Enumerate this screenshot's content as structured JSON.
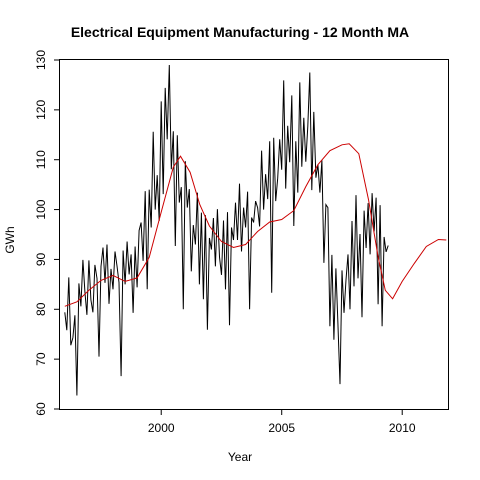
{
  "chart_data": {
    "type": "line",
    "title": "Electrical Equipment Manufacturing - 12 Month MA",
    "xlabel": "Year",
    "ylabel": "GWh",
    "xlim": [
      1995.8,
      2011.9
    ],
    "ylim": [
      60,
      130
    ],
    "x_ticks": [
      2000,
      2005,
      2010
    ],
    "y_ticks": [
      60,
      70,
      80,
      90,
      100,
      110,
      120,
      130
    ],
    "x_tick_labels": [
      "2000",
      "2005",
      "2010"
    ],
    "y_tick_labels": [
      "60",
      "70",
      "80",
      "90",
      "100",
      "110",
      "120",
      "130"
    ],
    "grid": false,
    "legend": "none",
    "series": [
      {
        "role": "monthly",
        "color": "#000000",
        "x_start": 1996.0,
        "x_step": 0.0833333,
        "values": [
          79.4,
          75.8,
          86.4,
          72.8,
          74.3,
          78.8,
          62.7,
          85.2,
          80.6,
          89.9,
          83.5,
          78.9,
          89.8,
          81.9,
          79.4,
          88.9,
          86.2,
          70.5,
          88.6,
          92.4,
          85.3,
          93.0,
          81.1,
          88.1,
          84.0,
          91.6,
          88.7,
          85.4,
          66.6,
          91.8,
          85.0,
          93.6,
          87.0,
          91.0,
          79.3,
          92.6,
          84.4,
          95.8,
          97.4,
          89.7,
          103.7,
          84.0,
          104.0,
          96.4,
          115.6,
          100.0,
          106.9,
          97.7,
          121.7,
          103.1,
          124.4,
          114.1,
          129.0,
          108.1,
          115.7,
          92.7,
          114.9,
          101.4,
          104.5,
          80.0,
          109.7,
          100.4,
          104.1,
          87.6,
          96.9,
          93.0,
          103.4,
          85.0,
          99.4,
          82.0,
          98.9,
          75.9,
          94.3,
          92.0,
          98.3,
          88.6,
          100.1,
          90.5,
          86.9,
          97.8,
          84.0,
          99.5,
          76.8,
          96.4,
          93.9,
          101.4,
          93.9,
          105.2,
          91.6,
          100.4,
          96.4,
          103.6,
          80.0,
          98.4,
          97.4,
          101.7,
          100.4,
          96.6,
          111.8,
          100.0,
          107.1,
          102.1,
          113.7,
          83.3,
          114.4,
          101.7,
          106.3,
          114.1,
          108.0,
          125.9,
          104.2,
          116.8,
          109.5,
          122.9,
          96.7,
          113.7,
          103.4,
          125.5,
          108.6,
          118.4,
          109.6,
          116.7,
          127.5,
          103.9,
          119.6,
          106.4,
          109.0,
          103.4,
          109.9,
          89.3,
          101.0,
          100.4,
          76.6,
          90.9,
          73.9,
          88.2,
          77.2,
          65.0,
          87.8,
          79.3,
          85.9,
          91.0,
          80.0,
          97.7,
          84.6,
          102.9,
          86.2,
          95.1,
          78.4,
          99.8,
          92.3,
          101.3,
          91.0,
          103.3,
          95.6,
          102.4,
          81.0,
          100.9,
          76.6,
          94.5,
          91.5,
          92.8
        ]
      },
      {
        "role": "moving_average",
        "color": "#cc0000",
        "x": [
          1996.0,
          1996.5,
          1997.0,
          1997.5,
          1998.0,
          1998.5,
          1999.0,
          1999.5,
          2000.0,
          2000.5,
          2000.8,
          2001.2,
          2001.6,
          2002.0,
          2002.5,
          2003.0,
          2003.5,
          2004.0,
          2004.5,
          2005.0,
          2005.5,
          2006.0,
          2006.5,
          2007.0,
          2007.5,
          2007.8,
          2008.2,
          2008.6,
          2009.0,
          2009.3,
          2009.6,
          2010.0,
          2010.5,
          2011.0,
          2011.5,
          2011.83
        ],
        "values": [
          80.6,
          81.5,
          83.8,
          85.8,
          86.8,
          85.6,
          86.3,
          90.4,
          99.5,
          108.5,
          110.7,
          107.5,
          101.0,
          96.7,
          93.6,
          92.4,
          93.0,
          95.6,
          97.5,
          98.0,
          99.8,
          104.6,
          109.0,
          111.8,
          113.0,
          113.2,
          111.2,
          102.0,
          90.5,
          83.8,
          82.1,
          85.6,
          89.2,
          92.6,
          94.0,
          93.9
        ]
      }
    ]
  }
}
